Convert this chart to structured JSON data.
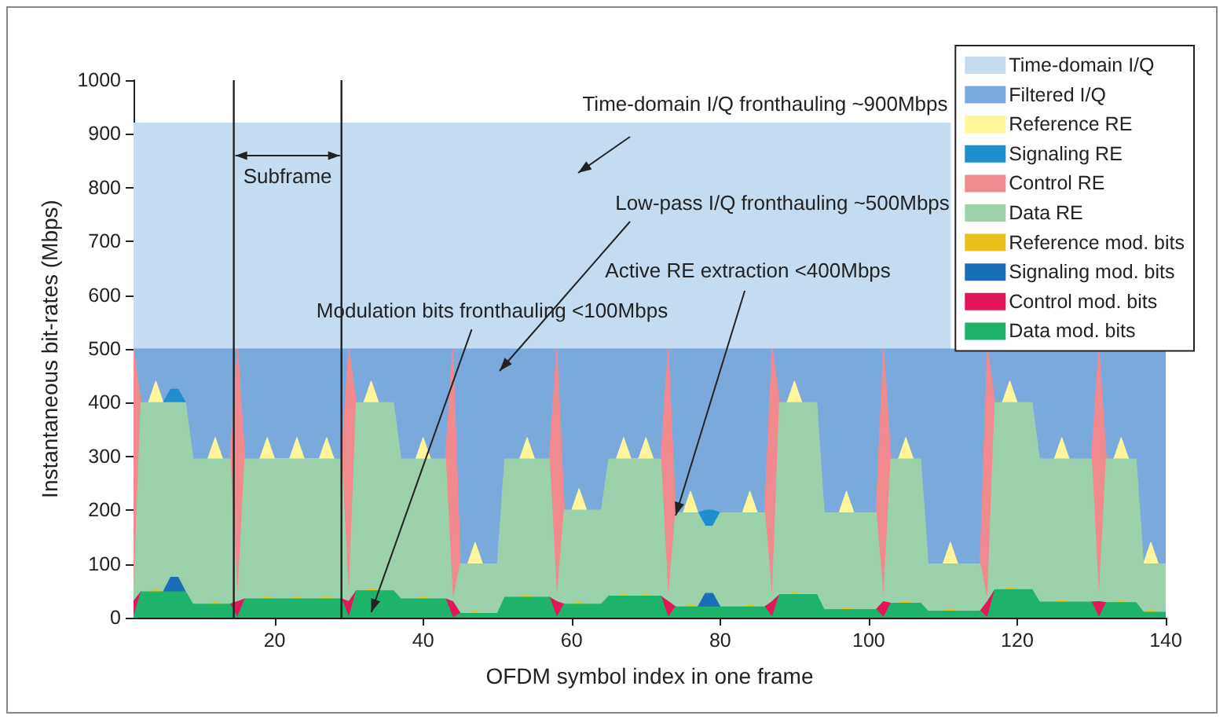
{
  "chart_data": {
    "type": "area",
    "stacked": true,
    "xlabel": "OFDM symbol index in one frame",
    "ylabel": "Instantaneous bit-rates (Mbps)",
    "xlim": [
      1,
      140
    ],
    "xticks": [
      20,
      40,
      60,
      80,
      100,
      120,
      140
    ],
    "ylim": [
      0,
      1000
    ],
    "yticks": [
      0,
      100,
      200,
      300,
      400,
      500,
      600,
      700,
      800,
      900,
      {
        "value": 1000,
        "label": "1000"
      }
    ],
    "grid": false,
    "legend": "top right",
    "x": [
      1,
      2,
      3,
      4,
      5,
      6,
      7,
      8,
      9,
      11,
      12,
      13,
      14,
      15,
      16,
      18,
      19,
      20,
      22,
      23,
      24,
      26,
      27,
      28,
      29,
      30,
      31,
      32,
      33,
      34,
      36,
      37,
      39,
      40,
      41,
      43,
      44,
      45,
      46,
      47,
      48,
      50,
      51,
      53,
      54,
      55,
      57,
      58,
      59,
      60,
      61,
      62,
      64,
      65,
      66,
      67,
      68,
      69,
      70,
      71,
      72,
      73,
      74,
      75,
      76,
      77,
      78,
      79,
      80,
      82,
      83,
      84,
      85,
      86,
      87,
      88,
      89,
      90,
      91,
      93,
      94,
      96,
      97,
      98,
      101,
      102,
      103,
      104,
      105,
      106,
      107,
      108,
      110,
      111,
      112,
      115,
      116,
      117,
      118,
      119,
      120,
      122,
      123,
      125,
      126,
      127,
      130,
      131,
      132,
      133,
      134,
      135,
      136,
      137,
      138,
      139,
      140
    ],
    "series": [
      {
        "name": "Data mod. bits",
        "color": "#1db36a",
        "values": [
          0,
          48,
          48,
          48,
          48,
          48,
          48,
          48,
          25,
          25,
          25,
          25,
          25,
          0,
          35,
          35,
          35,
          35,
          35,
          35,
          35,
          35,
          35,
          35,
          35,
          0,
          50,
          50,
          50,
          50,
          50,
          35,
          35,
          35,
          35,
          35,
          0,
          8,
          8,
          8,
          8,
          8,
          38,
          38,
          38,
          38,
          38,
          0,
          25,
          25,
          25,
          25,
          25,
          40,
          40,
          40,
          40,
          40,
          40,
          40,
          40,
          0,
          20,
          20,
          20,
          20,
          20,
          20,
          20,
          20,
          20,
          20,
          20,
          20,
          0,
          43,
          43,
          43,
          43,
          43,
          15,
          15,
          15,
          15,
          15,
          0,
          27,
          27,
          27,
          27,
          27,
          12,
          12,
          12,
          12,
          12,
          0,
          52,
          52,
          52,
          52,
          52,
          29,
          29,
          29,
          29,
          29,
          0,
          28,
          28,
          28,
          28,
          28,
          10,
          10,
          10,
          10
        ]
      },
      {
        "name": "Control mod. bits",
        "color": "#e3165a",
        "values": [
          30,
          0,
          null,
          null,
          null,
          null,
          null,
          null,
          null,
          null,
          null,
          null,
          0,
          30,
          0,
          null,
          null,
          null,
          null,
          null,
          null,
          null,
          null,
          null,
          0,
          30,
          0,
          null,
          null,
          null,
          null,
          null,
          null,
          null,
          null,
          0,
          30,
          0,
          null,
          null,
          null,
          null,
          null,
          null,
          null,
          null,
          0,
          30,
          0,
          null,
          null,
          null,
          null,
          null,
          null,
          null,
          null,
          null,
          null,
          null,
          0,
          30,
          0,
          null,
          null,
          null,
          null,
          null,
          null,
          null,
          null,
          null,
          null,
          0,
          30,
          0,
          null,
          null,
          null,
          null,
          null,
          null,
          null,
          null,
          0,
          30,
          0,
          null,
          null,
          null,
          null,
          null,
          null,
          null,
          null,
          0,
          30,
          0,
          null,
          null,
          null,
          null,
          null,
          null,
          null,
          null,
          0,
          30,
          0,
          null,
          null,
          null,
          null,
          null,
          null,
          null,
          null
        ]
      },
      {
        "name": "Signaling mod. bits",
        "color": "#1a6eb8",
        "values": [
          null,
          null,
          null,
          null,
          0,
          27,
          27,
          0,
          null,
          null,
          null,
          null,
          null,
          null,
          null,
          null,
          null,
          null,
          null,
          null,
          null,
          null,
          null,
          null,
          null,
          null,
          null,
          null,
          null,
          null,
          null,
          null,
          null,
          null,
          null,
          null,
          null,
          null,
          null,
          null,
          null,
          null,
          null,
          null,
          null,
          null,
          null,
          null,
          null,
          null,
          null,
          null,
          null,
          null,
          null,
          null,
          null,
          null,
          null,
          null,
          null,
          null,
          null,
          null,
          null,
          0,
          25,
          25,
          0,
          null,
          null,
          null,
          null,
          null,
          null,
          null,
          null,
          null,
          null,
          null,
          null,
          null,
          null,
          null,
          null,
          null,
          null,
          null,
          null,
          null,
          null,
          null,
          null,
          null,
          null,
          null,
          null,
          null,
          null,
          null,
          null,
          null,
          null,
          null,
          null,
          null,
          null,
          null,
          null,
          null,
          null,
          null,
          null,
          null,
          null,
          null,
          null
        ]
      },
      {
        "name": "Reference mod. bits",
        "color": "#e8c21a",
        "values": [
          null,
          null,
          0,
          4,
          0,
          null,
          null,
          null,
          null,
          0,
          4,
          0,
          null,
          null,
          null,
          0,
          4,
          0,
          0,
          4,
          0,
          0,
          4,
          0,
          null,
          null,
          null,
          0,
          4,
          0,
          null,
          null,
          0,
          4,
          0,
          null,
          null,
          null,
          0,
          4,
          0,
          null,
          null,
          0,
          4,
          0,
          null,
          null,
          null,
          0,
          4,
          0,
          null,
          null,
          0,
          4,
          0,
          0,
          4,
          0,
          null,
          null,
          null,
          0,
          4,
          0,
          null,
          null,
          null,
          null,
          0,
          4,
          0,
          null,
          null,
          null,
          0,
          4,
          0,
          null,
          null,
          0,
          4,
          0,
          null,
          null,
          null,
          0,
          4,
          0,
          null,
          null,
          0,
          4,
          0,
          null,
          null,
          null,
          0,
          4,
          0,
          null,
          null,
          0,
          4,
          0,
          null,
          null,
          null,
          0,
          4,
          0,
          null,
          0,
          4,
          0,
          null
        ]
      },
      {
        "name": "Data RE",
        "color": "#9bd1ab",
        "values": [
          0,
          352,
          352,
          348,
          352,
          325,
          325,
          352,
          270,
          270,
          266,
          270,
          270,
          0,
          260,
          260,
          256,
          260,
          260,
          256,
          260,
          260,
          256,
          260,
          260,
          0,
          350,
          350,
          346,
          350,
          350,
          260,
          260,
          256,
          260,
          260,
          0,
          92,
          92,
          88,
          92,
          92,
          257,
          257,
          253,
          257,
          257,
          0,
          175,
          175,
          171,
          175,
          175,
          255,
          255,
          251,
          255,
          255,
          251,
          255,
          255,
          0,
          175,
          175,
          171,
          175,
          125,
          125,
          175,
          175,
          175,
          171,
          175,
          175,
          0,
          357,
          357,
          353,
          357,
          357,
          180,
          180,
          176,
          180,
          180,
          0,
          268,
          268,
          264,
          268,
          268,
          88,
          88,
          84,
          88,
          88,
          0,
          348,
          348,
          344,
          348,
          348,
          266,
          266,
          262,
          266,
          266,
          0,
          267,
          267,
          263,
          267,
          267,
          90,
          86,
          90,
          90
        ]
      },
      {
        "name": "Control RE",
        "color": "#f08a8f",
        "values": [
          470,
          0,
          null,
          null,
          null,
          null,
          null,
          null,
          null,
          null,
          null,
          null,
          0,
          470,
          0,
          null,
          null,
          null,
          null,
          null,
          null,
          null,
          null,
          null,
          0,
          470,
          0,
          null,
          null,
          null,
          null,
          null,
          null,
          null,
          null,
          0,
          470,
          0,
          null,
          null,
          null,
          null,
          null,
          null,
          null,
          null,
          0,
          470,
          0,
          null,
          null,
          null,
          null,
          null,
          null,
          null,
          null,
          null,
          null,
          null,
          0,
          470,
          0,
          null,
          null,
          null,
          null,
          null,
          null,
          null,
          null,
          null,
          null,
          0,
          470,
          0,
          null,
          null,
          null,
          null,
          null,
          null,
          null,
          null,
          0,
          470,
          0,
          null,
          null,
          null,
          null,
          null,
          null,
          null,
          null,
          0,
          470,
          0,
          null,
          null,
          null,
          null,
          null,
          null,
          null,
          null,
          0,
          470,
          0,
          null,
          null,
          null,
          null,
          null,
          null,
          null,
          null
        ]
      },
      {
        "name": "Signaling RE",
        "color": "#1f8fd0",
        "values": [
          null,
          null,
          null,
          null,
          0,
          25,
          25,
          0,
          null,
          null,
          null,
          null,
          null,
          null,
          null,
          null,
          null,
          null,
          null,
          null,
          null,
          null,
          null,
          null,
          null,
          null,
          null,
          null,
          null,
          null,
          null,
          null,
          null,
          null,
          null,
          null,
          null,
          null,
          null,
          null,
          null,
          null,
          null,
          null,
          null,
          null,
          null,
          null,
          null,
          null,
          null,
          null,
          null,
          null,
          null,
          null,
          null,
          null,
          null,
          null,
          null,
          null,
          null,
          null,
          null,
          0,
          30,
          30,
          0,
          null,
          null,
          null,
          null,
          null,
          null,
          null,
          null,
          null,
          null,
          null,
          null,
          null,
          null,
          null,
          null,
          null,
          null,
          null,
          null,
          null,
          null,
          null,
          null,
          null,
          null,
          null,
          null,
          null,
          null,
          null,
          null,
          null,
          null,
          null,
          null,
          null,
          null,
          null,
          null,
          null,
          null,
          null,
          null,
          null,
          null,
          null,
          null
        ]
      },
      {
        "name": "Reference RE",
        "color": "#fff59a",
        "values": [
          null,
          null,
          0,
          40,
          0,
          null,
          null,
          null,
          null,
          0,
          40,
          0,
          null,
          null,
          null,
          0,
          40,
          0,
          0,
          40,
          0,
          0,
          40,
          0,
          null,
          null,
          null,
          0,
          40,
          0,
          null,
          null,
          0,
          40,
          0,
          null,
          null,
          null,
          0,
          40,
          0,
          null,
          null,
          0,
          40,
          0,
          null,
          null,
          null,
          0,
          40,
          0,
          null,
          null,
          0,
          40,
          0,
          0,
          40,
          0,
          null,
          null,
          null,
          0,
          40,
          0,
          null,
          null,
          null,
          null,
          0,
          40,
          0,
          null,
          null,
          null,
          0,
          40,
          0,
          null,
          null,
          0,
          40,
          0,
          null,
          null,
          null,
          0,
          40,
          0,
          null,
          null,
          0,
          40,
          0,
          null,
          null,
          null,
          0,
          40,
          0,
          null,
          null,
          0,
          40,
          0,
          null,
          null,
          null,
          0,
          40,
          0,
          null,
          0,
          40,
          0,
          null
        ]
      },
      {
        "name": "Filtered I/Q",
        "color": "#7aaadc",
        "values": [
          0,
          100,
          100,
          60,
          100,
          75,
          75,
          100,
          205,
          205,
          165,
          205,
          205,
          0,
          205,
          205,
          165,
          205,
          205,
          165,
          205,
          205,
          165,
          205,
          205,
          0,
          100,
          100,
          60,
          100,
          100,
          205,
          205,
          165,
          205,
          205,
          0,
          400,
          400,
          360,
          400,
          400,
          205,
          205,
          165,
          205,
          205,
          0,
          300,
          300,
          260,
          300,
          300,
          205,
          205,
          165,
          205,
          205,
          165,
          205,
          205,
          0,
          305,
          305,
          265,
          305,
          300,
          300,
          305,
          305,
          305,
          265,
          305,
          305,
          0,
          100,
          100,
          60,
          100,
          100,
          305,
          305,
          265,
          305,
          305,
          0,
          205,
          205,
          165,
          205,
          205,
          400,
          400,
          360,
          400,
          400,
          0,
          100,
          100,
          60,
          100,
          100,
          205,
          205,
          165,
          205,
          205,
          0,
          205,
          205,
          165,
          205,
          205,
          400,
          360,
          400,
          400
        ]
      },
      {
        "name": "Time-domain I/Q",
        "color": "#c5dcf0",
        "values": [
          420,
          420,
          420,
          420,
          420,
          420,
          420,
          420,
          420,
          420,
          420,
          420,
          420,
          420,
          420,
          420,
          420,
          420,
          420,
          420,
          420,
          420,
          420,
          420,
          420,
          420,
          420,
          420,
          420,
          420,
          420,
          420,
          420,
          420,
          420,
          420,
          420,
          420,
          420,
          420,
          420,
          420,
          420,
          420,
          420,
          420,
          420,
          420,
          420,
          420,
          420,
          420,
          420,
          420,
          420,
          420,
          420,
          420,
          420,
          420,
          420,
          420,
          420,
          420,
          420,
          420,
          420,
          420,
          420,
          420,
          420,
          420,
          420,
          420,
          420,
          420,
          420,
          420,
          420,
          420,
          420,
          420,
          420,
          420,
          420,
          420,
          420,
          420,
          420,
          420,
          420,
          420,
          420,
          420,
          null,
          null,
          null,
          null,
          null,
          null,
          null,
          null,
          null,
          null,
          null,
          null,
          null,
          null,
          null,
          null,
          null,
          null,
          null,
          null,
          null,
          null,
          null
        ]
      }
    ],
    "ref_lines": [
      {
        "axis": "x",
        "value": 14.5
      },
      {
        "axis": "x",
        "value": 29
      }
    ],
    "annotations": [
      "Time-domain I/Q fronthauling ~900Mbps",
      "Low-pass I/Q fronthauling ~500Mbps",
      {
        "text": "Active RE extraction <400Mbps",
        "x": 74,
        "y": 190
      },
      {
        "text": "Modulation bits fronthauling <100Mbps",
        "x": 33,
        "y": 10
      },
      "Subframe"
    ]
  }
}
